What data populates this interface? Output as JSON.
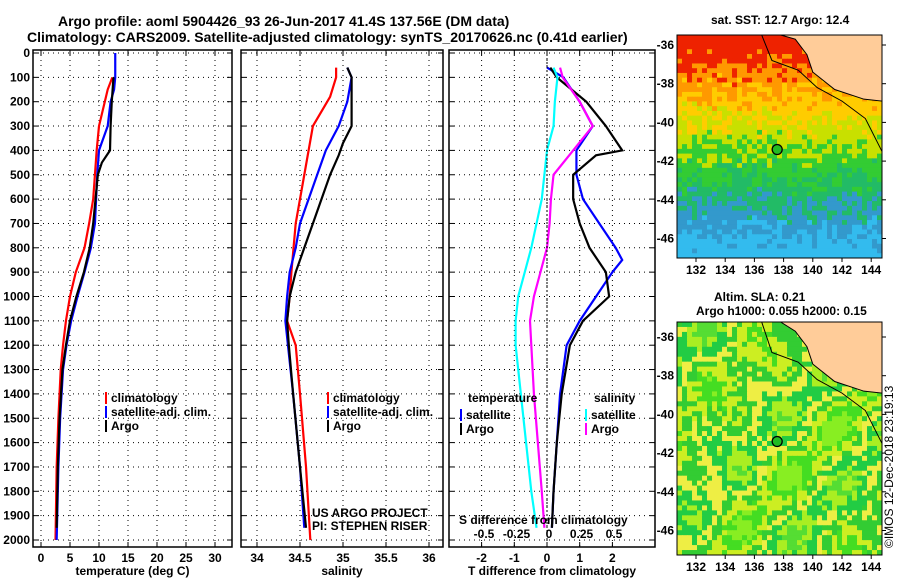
{
  "title": {
    "line1": "Argo profile: aoml 5904426_93 26-Jun-2017 41.4S 137.56E (DM data)",
    "line2": "Climatology: CARS2009. Satellite-adjusted climatology: synTS_20170626.nc (0.41d earlier)"
  },
  "colors": {
    "climatology": "#ff0000",
    "satellite": "#0000ff",
    "argo": "#000000",
    "sal_satellite": "#00ffff",
    "sal_argo": "#ff00ff"
  },
  "chart_data": [
    {
      "type": "line",
      "name": "temperature",
      "xlabel": "temperature (deg C)",
      "ylabel": "depth",
      "xlim": [
        -2,
        32
      ],
      "ylim": [
        2000,
        0
      ],
      "xticks": [
        0,
        5,
        10,
        15,
        20,
        25,
        30
      ],
      "yticks": [
        0,
        100,
        200,
        300,
        400,
        500,
        600,
        700,
        800,
        900,
        1000,
        1100,
        1200,
        1300,
        1400,
        1500,
        1600,
        1700,
        1800,
        1900,
        2000
      ],
      "legend": [
        "climatology",
        "satellite-adj. clim.",
        "Argo"
      ],
      "series": [
        {
          "name": "climatology",
          "color": "#ff0000",
          "depth": [
            100,
            150,
            200,
            300,
            400,
            500,
            600,
            700,
            800,
            900,
            1000,
            1100,
            1200,
            1300,
            1500,
            1700,
            2000
          ],
          "values": [
            12.3,
            11.5,
            11,
            10,
            9.6,
            9.3,
            9,
            8.3,
            7.5,
            6,
            5,
            4.3,
            3.8,
            3.4,
            3,
            2.7,
            2.5
          ]
        },
        {
          "name": "satellite-adj. clim.",
          "color": "#0000ff",
          "depth": [
            0,
            100,
            150,
            200,
            300,
            400,
            500,
            600,
            700,
            800,
            900,
            1000,
            1100,
            1200,
            1300,
            1500,
            1700,
            2000
          ],
          "values": [
            12.8,
            12.8,
            12.6,
            12,
            11.5,
            10,
            9.7,
            9.5,
            9.3,
            8.6,
            7.5,
            6.3,
            5.2,
            4.4,
            3.8,
            3.3,
            3,
            2.7
          ]
        },
        {
          "name": "Argo",
          "color": "#000000",
          "depth": [
            100,
            200,
            300,
            400,
            450,
            500,
            600,
            700,
            800,
            900,
            1000,
            1100,
            1200,
            1300,
            1500,
            1700,
            1950
          ],
          "values": [
            12.5,
            12.2,
            12,
            11.9,
            10.5,
            9.8,
            9.4,
            9,
            8.4,
            7.4,
            6.1,
            5,
            4.3,
            3.7,
            3.2,
            2.9,
            2.7
          ]
        }
      ]
    },
    {
      "type": "line",
      "name": "salinity",
      "xlabel": "salinity",
      "xlim": [
        33.8,
        36.1
      ],
      "ylim": [
        2000,
        0
      ],
      "xticks": [
        34,
        34.5,
        35,
        35.5,
        36
      ],
      "legend": [
        "climatology",
        "satellite-adj. clim.",
        "Argo"
      ],
      "annotation": [
        "US ARGO PROJECT",
        "PI: STEPHEN RISER"
      ],
      "series": [
        {
          "name": "climatology",
          "color": "#ff0000",
          "depth": [
            60,
            100,
            180,
            300,
            500,
            700,
            900,
            1000,
            1100,
            1200,
            1400,
            1700,
            2000
          ],
          "values": [
            34.92,
            34.92,
            34.85,
            34.65,
            34.55,
            34.45,
            34.4,
            34.38,
            34.35,
            34.45,
            34.5,
            34.57,
            34.62
          ]
        },
        {
          "name": "satellite-adj. clim.",
          "color": "#0000ff",
          "depth": [
            60,
            100,
            200,
            300,
            400,
            500,
            600,
            700,
            800,
            900,
            1000,
            1100,
            1200,
            1400,
            1700,
            1950
          ],
          "values": [
            35.05,
            35.1,
            35.05,
            34.95,
            34.8,
            34.7,
            34.6,
            34.5,
            34.45,
            34.38,
            34.35,
            34.33,
            34.36,
            34.42,
            34.5,
            34.55
          ]
        },
        {
          "name": "Argo",
          "color": "#000000",
          "depth": [
            60,
            100,
            300,
            370,
            420,
            500,
            600,
            700,
            800,
            900,
            1000,
            1100,
            1200,
            1400,
            1700,
            1950
          ],
          "values": [
            35.05,
            35.1,
            35.1,
            35.0,
            34.95,
            34.85,
            34.75,
            34.65,
            34.55,
            34.45,
            34.38,
            34.35,
            34.37,
            34.42,
            34.5,
            34.57
          ]
        }
      ]
    },
    {
      "type": "line",
      "name": "difference",
      "xlabel": "T difference from climatology",
      "x2label": "S difference from climatology",
      "xlim": [
        -3,
        3.2
      ],
      "ylim": [
        2000,
        0
      ],
      "xticks": [
        -2,
        -1,
        0,
        1,
        2
      ],
      "x2ticks": [
        "-0.5",
        "-0.25",
        "0",
        "0.25",
        "0.5"
      ],
      "legend": {
        "temperature": "temperature",
        "salinity": "salinity",
        "satellite": "satellite",
        "argo": "Argo"
      },
      "series": [
        {
          "name": "T satellite",
          "color": "#0000ff",
          "depth": [
            60,
            100,
            200,
            300,
            400,
            500,
            600,
            700,
            800,
            850,
            900,
            1000,
            1100,
            1200,
            1400,
            1600,
            1800,
            1950
          ],
          "values": [
            0,
            0.5,
            1,
            1.4,
            0.9,
            0.9,
            1.1,
            1.6,
            2.1,
            2.3,
            2.0,
            1.5,
            1.0,
            0.6,
            0.4,
            0.3,
            0.2,
            0.15
          ]
        },
        {
          "name": "T Argo",
          "color": "#000000",
          "depth": [
            60,
            100,
            200,
            300,
            400,
            420,
            500,
            600,
            700,
            800,
            900,
            1000,
            1100,
            1200,
            1400,
            1600,
            1800,
            1950
          ],
          "values": [
            0.1,
            0.3,
            1.2,
            1.8,
            2.3,
            1.5,
            0.8,
            0.8,
            1.0,
            1.3,
            1.8,
            1.9,
            1.1,
            0.7,
            0.45,
            0.3,
            0.2,
            0.15
          ]
        },
        {
          "name": "S satellite",
          "color": "#00ffff",
          "scale": 4,
          "depth": [
            60,
            100,
            200,
            300,
            400,
            500,
            600,
            700,
            800,
            900,
            1000,
            1100,
            1200,
            1400,
            1600,
            1800,
            1950
          ],
          "values": [
            0.05,
            0.08,
            0.06,
            0.05,
            0,
            -0.02,
            -0.04,
            -0.08,
            -0.12,
            -0.17,
            -0.22,
            -0.24,
            -0.24,
            -0.2,
            -0.16,
            -0.12,
            -0.08
          ]
        },
        {
          "name": "S Argo",
          "color": "#ff00ff",
          "scale": 4,
          "depth": [
            60,
            100,
            200,
            300,
            400,
            500,
            600,
            700,
            800,
            900,
            1000,
            1100,
            1200,
            1400,
            1600,
            1800,
            1950
          ],
          "values": [
            0.1,
            0.12,
            0.25,
            0.35,
            0.2,
            0.05,
            0.03,
            0.02,
            0,
            -0.05,
            -0.1,
            -0.13,
            -0.12,
            -0.1,
            -0.07,
            -0.04,
            -0.02
          ]
        }
      ]
    }
  ],
  "maps": {
    "sst": {
      "title": "sat. SST: 12.7 Argo: 12.4"
    },
    "sla": {
      "title1": "Altim. SLA: 0.21",
      "title2": "Argo h1000: 0.055 h2000: 0.15"
    },
    "lon_ticks": [
      "132",
      "134",
      "136",
      "138",
      "140",
      "142",
      "144"
    ],
    "lat_ticks": [
      "-36",
      "-38",
      "-40",
      "-42",
      "-44",
      "-46"
    ],
    "float_lon": 137.56,
    "float_lat": -41.4
  },
  "credit": "©IMOS 12-Dec-2018 23:19:13"
}
